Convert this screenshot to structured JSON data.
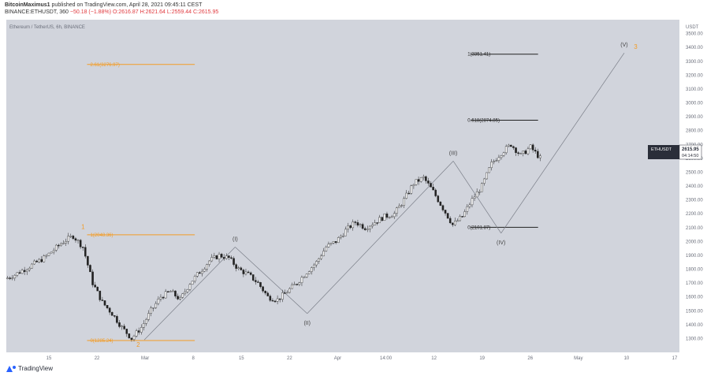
{
  "header": {
    "author": "BitcoinMaximus1",
    "published": "published on TradingView.com, April 28, 2021 09:45:11 CEST",
    "symbol_line_prefix": "BINANCE:ETHUSDT, 360",
    "change": "−50.18 (−1.88%)",
    "ohlc": "O:2616.87 H:2621.64 L:2559.44 C:2615.95"
  },
  "chart_data": {
    "type": "candlestick",
    "title": "Ethereum / TetherUS, 6h, BINANCE",
    "price_axis": {
      "min": 1200,
      "max": 3600,
      "ticks": [
        1300,
        1400,
        1500,
        1600,
        1700,
        1800,
        1900,
        2000,
        2100,
        2200,
        2300,
        2400,
        2500,
        2600,
        2700,
        2800,
        2900,
        3000,
        3100,
        3200,
        3300,
        3400,
        3500
      ],
      "top_label": "USDT"
    },
    "time_axis": {
      "ticks": [
        "15",
        "22",
        "Mar",
        "8",
        "15",
        "22",
        "Apr",
        "14:00",
        "12",
        "19",
        "26",
        "May",
        "10",
        "17"
      ]
    },
    "last_price": {
      "symbol": "ETHUSDT",
      "value": 2615.95,
      "label": "2615.95",
      "countdown": "04:14:50"
    },
    "price_path": [
      1730,
      1760,
      1800,
      1840,
      1880,
      1940,
      2000,
      2040,
      1960,
      1700,
      1560,
      1480,
      1380,
      1300,
      1380,
      1500,
      1600,
      1640,
      1580,
      1700,
      1780,
      1860,
      1900,
      1880,
      1800,
      1760,
      1700,
      1600,
      1580,
      1640,
      1700,
      1780,
      1850,
      1960,
      2000,
      2080,
      2140,
      2100,
      2140,
      2180,
      2200,
      2300,
      2420,
      2460,
      2360,
      2240,
      2120,
      2180,
      2300,
      2400,
      2560,
      2640,
      2700,
      2620,
      2680,
      2600
    ],
    "waves": [
      {
        "label": "(I)",
        "color": "#444444",
        "x_frac": 0.34,
        "price": 1960
      },
      {
        "label": "(II)",
        "color": "#444444",
        "x_frac": 0.447,
        "price": 1480
      },
      {
        "label": "(III)",
        "color": "#444444",
        "x_frac": 0.664,
        "price": 2580
      },
      {
        "label": "(IV)",
        "color": "#444444",
        "x_frac": 0.735,
        "price": 2060
      },
      {
        "label": "(V)",
        "color": "#444444",
        "x_frac": 0.918,
        "price": 3360
      }
    ],
    "fib_levels": [
      {
        "label": "2.61(3276.97)",
        "value": 3276.97,
        "color": "#f39c26"
      },
      {
        "label": "1(2048.36)",
        "value": 2048.36,
        "color": "#f39c26"
      },
      {
        "label": "0(1285.24)",
        "value": 1285.24,
        "color": "#f39c26"
      },
      {
        "label": "1(3351.41)",
        "value": 3351.41,
        "color": "#222222"
      },
      {
        "label": "0.618(2874.85)",
        "value": 2874.85,
        "color": "#222222"
      },
      {
        "label": "0(2101.87)",
        "value": 2101.87,
        "color": "#222222"
      }
    ],
    "orange_labels": [
      {
        "label": "1",
        "price": 2090
      },
      {
        "label": "2",
        "price": 1240
      },
      {
        "label": "3",
        "price": 3390
      }
    ]
  },
  "footer": {
    "brand": "TradingView"
  }
}
